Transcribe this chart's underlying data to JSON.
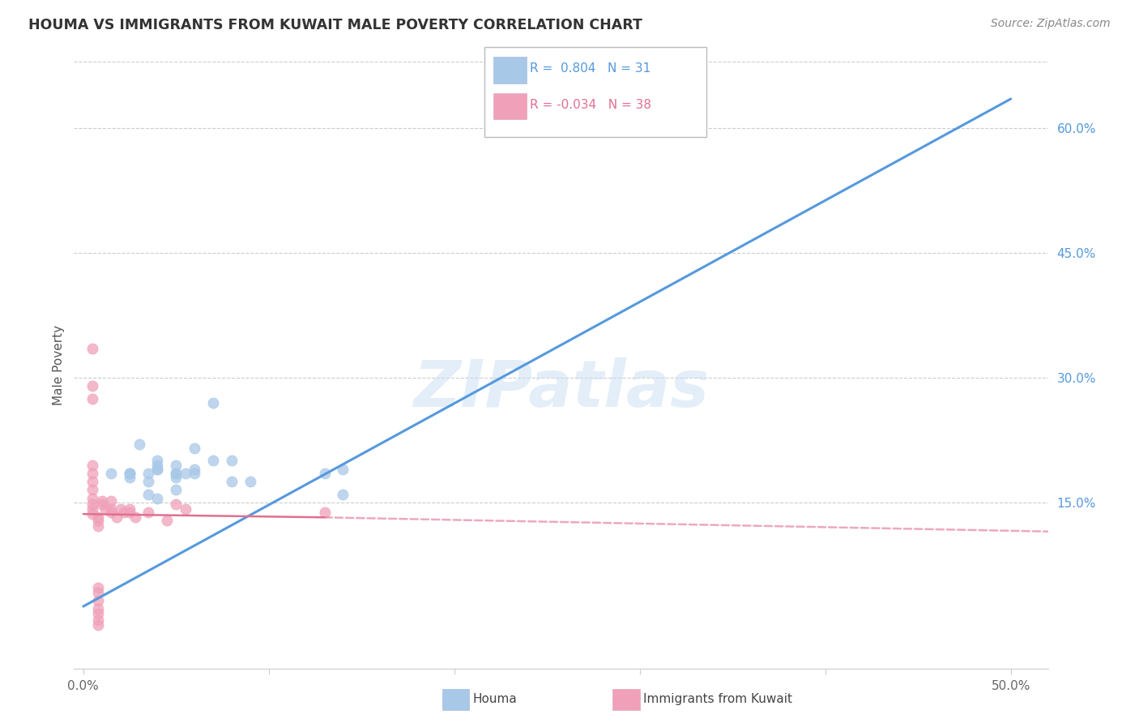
{
  "title": "HOUMA VS IMMIGRANTS FROM KUWAIT MALE POVERTY CORRELATION CHART",
  "source": "Source: ZipAtlas.com",
  "ylabel": "Male Poverty",
  "xlim": [
    -0.005,
    0.52
  ],
  "ylim": [
    -0.05,
    0.68
  ],
  "xtick_positions": [
    0.0,
    0.1,
    0.2,
    0.3,
    0.4,
    0.5
  ],
  "xtick_labels": [
    "0.0%",
    "",
    "",
    "",
    "",
    "50.0%"
  ],
  "yticks_right": [
    0.15,
    0.3,
    0.45,
    0.6
  ],
  "ytick_labels_right": [
    "15.0%",
    "30.0%",
    "45.0%",
    "60.0%"
  ],
  "blue_color": "#a8c8e8",
  "pink_color": "#f0a0b8",
  "blue_line_color": "#5599dd",
  "pink_line_color": "#e07090",
  "legend_blue_r": "R =  0.804",
  "legend_blue_n": "N = 31",
  "legend_pink_r": "R = -0.034",
  "legend_pink_n": "N = 38",
  "legend1_label": "Houma",
  "legend2_label": "Immigrants from Kuwait",
  "watermark": "ZIPatlas",
  "title_color": "#333333",
  "axis_color": "#cccccc",
  "grid_color": "#cccccc",
  "blue_line_x0": 0.0,
  "blue_line_y0": 0.025,
  "blue_line_x1": 0.5,
  "blue_line_y1": 0.635,
  "pink_line_solid_x0": 0.0,
  "pink_line_solid_y0": 0.136,
  "pink_line_solid_x1": 0.13,
  "pink_line_solid_y1": 0.132,
  "pink_line_dash_x0": 0.13,
  "pink_line_dash_y0": 0.132,
  "pink_line_dash_x1": 0.52,
  "pink_line_dash_y1": 0.115,
  "blue_scatter_x": [
    0.03,
    0.06,
    0.04,
    0.05,
    0.07,
    0.04,
    0.025,
    0.05,
    0.06,
    0.04,
    0.015,
    0.025,
    0.035,
    0.05,
    0.025,
    0.04,
    0.07,
    0.05,
    0.14,
    0.08,
    0.025,
    0.035,
    0.055,
    0.09,
    0.13,
    0.14,
    0.08,
    0.04,
    0.035,
    0.05,
    0.06
  ],
  "blue_scatter_y": [
    0.22,
    0.215,
    0.2,
    0.195,
    0.2,
    0.19,
    0.185,
    0.185,
    0.19,
    0.195,
    0.185,
    0.18,
    0.175,
    0.18,
    0.185,
    0.19,
    0.27,
    0.185,
    0.16,
    0.2,
    0.185,
    0.185,
    0.185,
    0.175,
    0.185,
    0.19,
    0.175,
    0.155,
    0.16,
    0.165,
    0.185
  ],
  "pink_scatter_x": [
    0.005,
    0.005,
    0.005,
    0.005,
    0.005,
    0.005,
    0.005,
    0.005,
    0.005,
    0.005,
    0.005,
    0.008,
    0.008,
    0.008,
    0.01,
    0.01,
    0.012,
    0.015,
    0.015,
    0.015,
    0.018,
    0.02,
    0.022,
    0.025,
    0.025,
    0.028,
    0.035,
    0.045,
    0.05,
    0.055,
    0.008,
    0.008,
    0.008,
    0.008,
    0.008,
    0.008,
    0.008,
    0.13
  ],
  "pink_scatter_y": [
    0.335,
    0.29,
    0.275,
    0.195,
    0.185,
    0.175,
    0.165,
    0.155,
    0.148,
    0.142,
    0.136,
    0.132,
    0.128,
    0.122,
    0.152,
    0.148,
    0.142,
    0.152,
    0.142,
    0.138,
    0.132,
    0.142,
    0.138,
    0.142,
    0.138,
    0.132,
    0.138,
    0.128,
    0.148,
    0.142,
    0.048,
    0.042,
    0.032,
    0.022,
    0.016,
    0.009,
    0.003,
    0.138
  ]
}
